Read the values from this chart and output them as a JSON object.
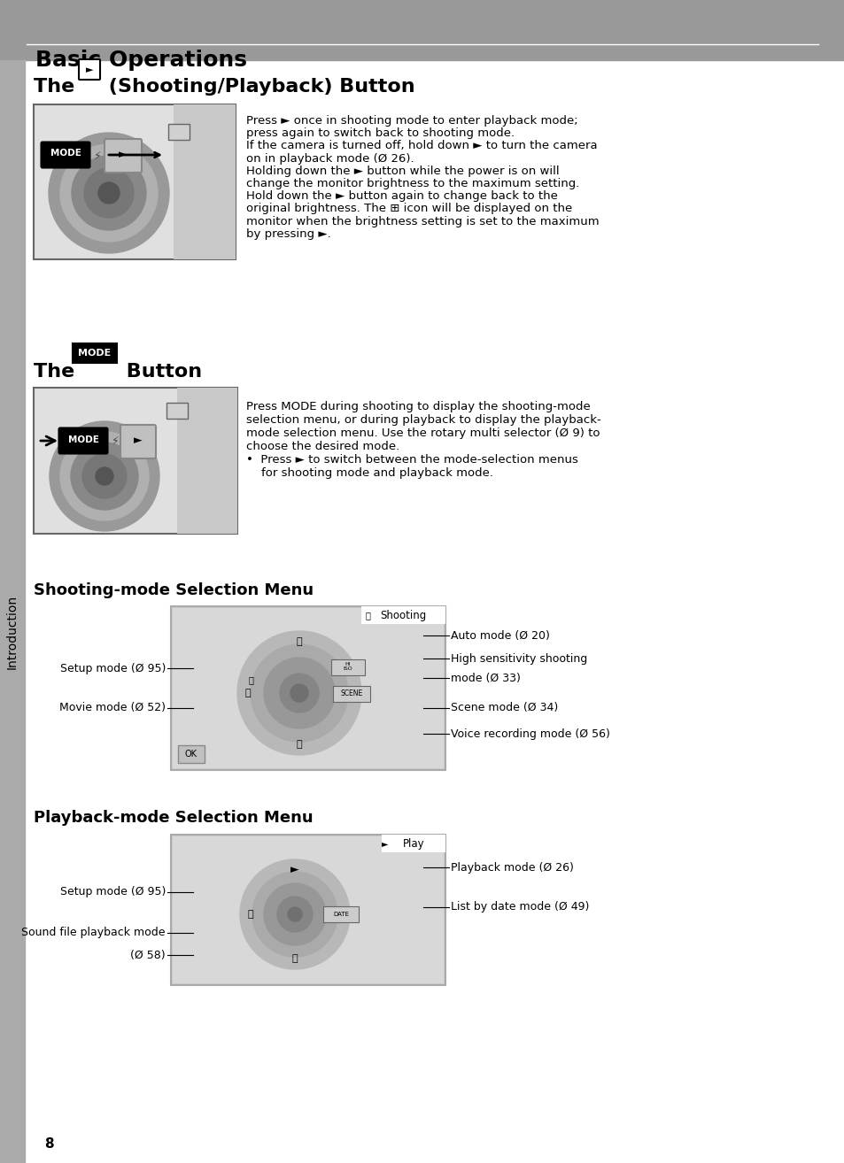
{
  "page_bg": "#ffffff",
  "header_bg": "#999999",
  "header_text": "Basic Operations",
  "header_text_color": "#000000",
  "sidebar_bg": "#aaaaaa",
  "sidebar_text": "Introduction",
  "sidebar_text_color": "#000000",
  "section1_title_pre": "The ",
  "section1_title_post": " (Shooting/Playback) Button",
  "section2_title_pre": "The ",
  "section2_title_post": " Button",
  "section3_title": "Shooting-mode Selection Menu",
  "section4_title": "Playback-mode Selection Menu",
  "section1_body": [
    "Press ► once in shooting mode to enter playback mode;",
    "press again to switch back to shooting mode.",
    "If the camera is turned off, hold down ► to turn the camera",
    "on in playback mode (Ø 26).",
    "Holding down the ► button while the power is on will",
    "change the monitor brightness to the maximum setting.",
    "Hold down the ► button again to change back to the",
    "original brightness. The ⊞ icon will be displayed on the",
    "monitor when the brightness setting is set to the maximum",
    "by pressing ►."
  ],
  "section2_body": [
    "Press MODE during shooting to display the shooting-mode",
    "selection menu, or during playback to display the playback-",
    "mode selection menu. Use the rotary multi selector (Ø 9) to",
    "choose the desired mode.",
    "•  Press ► to switch between the mode-selection menus",
    "    for shooting mode and playback mode."
  ],
  "shoot_left_labels": [
    [
      "Setup mode (Ø 95)",
      0.38
    ],
    [
      "Movie mode (Ø 52)",
      0.62
    ]
  ],
  "shoot_right_labels": [
    [
      "Auto mode (Ø 20)",
      0.18
    ],
    [
      "High sensitivity shooting",
      0.32
    ],
    [
      "mode (Ø 33)",
      0.44
    ],
    [
      "Scene mode (Ø 34)",
      0.62
    ],
    [
      "Voice recording mode (Ø 56)",
      0.78
    ]
  ],
  "play_left_labels": [
    [
      "Setup mode (Ø 95)",
      0.38
    ],
    [
      "Sound file playback mode",
      0.65
    ],
    [
      "(Ø 58)",
      0.8
    ]
  ],
  "play_right_labels": [
    [
      "Playback mode (Ø 26)",
      0.22
    ],
    [
      "List by date mode (Ø 49)",
      0.48
    ]
  ],
  "page_number": "8"
}
